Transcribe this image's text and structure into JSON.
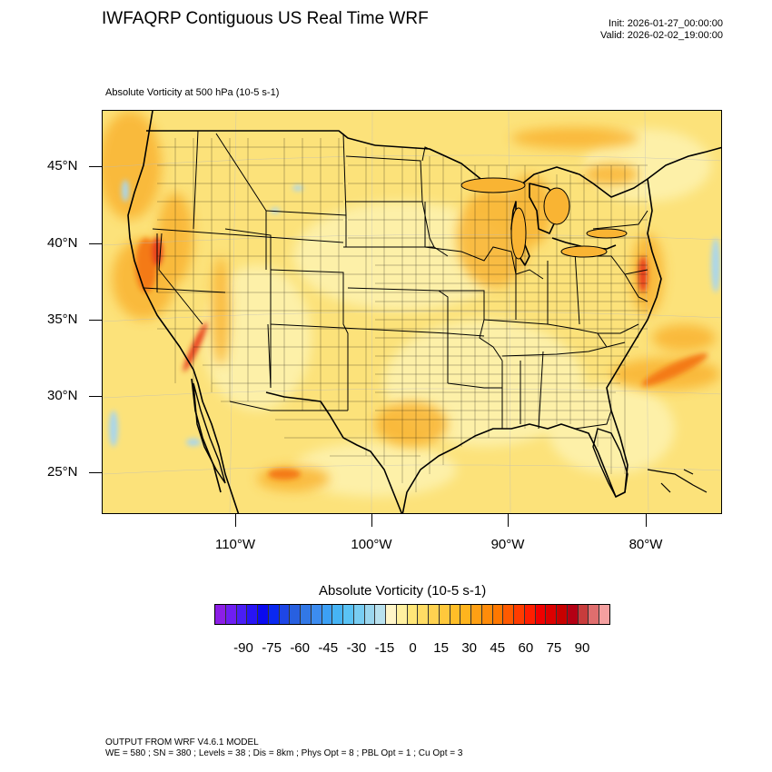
{
  "header": {
    "title": "IWFAQRP Contiguous US Real Time WRF",
    "init": "Init: 2026-01-27_00:00:00",
    "valid": "Valid: 2026-02-02_19:00:00",
    "subtitle": "Absolute Vorticity at 500 hPa   (10-5 s-1)"
  },
  "map": {
    "lat_labels": [
      "45°N",
      "40°N",
      "35°N",
      "30°N",
      "25°N"
    ],
    "lon_labels": [
      "110°W",
      "100°W",
      "90°W",
      "80°W"
    ],
    "field_colors": {
      "background": "#fce27a",
      "light": "#fdf0a8",
      "orange": "#f9b433",
      "deep_orange": "#f47a16",
      "red": "#e8401c",
      "blue": "#a9d6ec"
    }
  },
  "colorbar": {
    "title": "Absolute Vorticity  (10-5 s-1)",
    "labels": [
      "-90",
      "-75",
      "-60",
      "-45",
      "-30",
      "-15",
      "0",
      "15",
      "30",
      "45",
      "60",
      "75",
      "90"
    ],
    "colors": [
      "#8c1ee6",
      "#6e1ef2",
      "#4a1ef5",
      "#2814f5",
      "#0a0af0",
      "#0a28f0",
      "#1e46e6",
      "#2860e0",
      "#3278e6",
      "#3c8cf0",
      "#3ca0f5",
      "#46b4f5",
      "#5ac3f5",
      "#78cdf2",
      "#9bd6ee",
      "#b9e1ee",
      "#fff5c8",
      "#fff0a0",
      "#ffe678",
      "#ffdc64",
      "#ffd250",
      "#ffc83c",
      "#ffbe28",
      "#ffb41e",
      "#ffa014",
      "#ff8c0a",
      "#ff7800",
      "#ff5a00",
      "#ff3c00",
      "#ff1e00",
      "#f00000",
      "#dc0000",
      "#c80000",
      "#b40014",
      "#c83c3c",
      "#e06e6e",
      "#f4a0a0"
    ]
  },
  "footer": {
    "line1": "OUTPUT FROM WRF V4.6.1 MODEL",
    "line2": "WE = 580 ; SN = 380 ; Levels = 38 ; Dis = 8km ; Phys Opt = 8 ; PBL Opt = 1 ; Cu Opt = 3"
  }
}
